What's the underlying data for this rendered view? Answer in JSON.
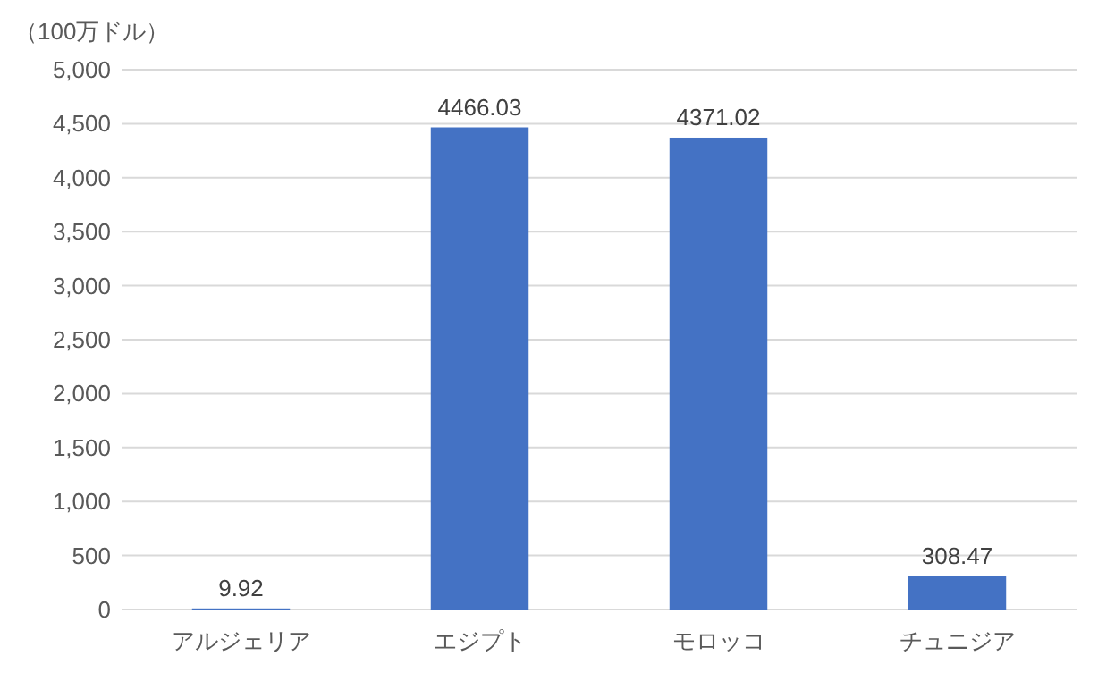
{
  "chart_data": {
    "type": "bar",
    "ylabel": "（100万ドル）",
    "categories": [
      "アルジェリア",
      "エジプト",
      "モロッコ",
      "チュニジア"
    ],
    "values": [
      9.92,
      4466.03,
      4371.02,
      308.47
    ],
    "color": "#4472c4",
    "ylim": [
      0,
      5000
    ],
    "yticks": [
      0,
      {
        "value": 500,
        "label": "500"
      },
      {
        "value": 1000,
        "label": "1,000"
      },
      {
        "value": 1500,
        "label": "1,500"
      },
      {
        "value": 2000,
        "label": "2,000"
      },
      {
        "value": 2500,
        "label": "2,500"
      },
      {
        "value": 3000,
        "label": "3,000"
      },
      {
        "value": 3500,
        "label": "3,500"
      },
      {
        "value": 4000,
        "label": "4,000"
      },
      {
        "value": 4500,
        "label": "4,500"
      },
      {
        "value": 5000,
        "label": "5,000"
      }
    ],
    "grid": "y",
    "data_labels": true
  }
}
